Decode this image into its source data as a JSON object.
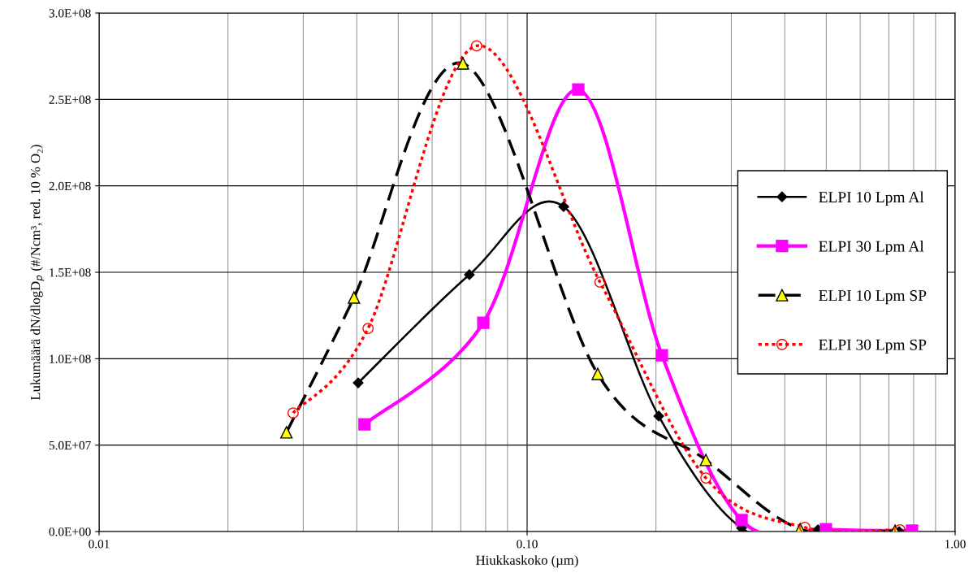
{
  "chart_data": {
    "type": "line",
    "xlabel": "Hiukkaskoko (µm)",
    "ylabel": "Lukumäärä dN/dlogD$_{p}$ (#/Ncm³, red. 10 % O₂)",
    "log": "x",
    "grid": true,
    "legend": "right",
    "xlim": [
      0.01,
      1.0
    ],
    "xticks": [
      {
        "value": 0.01,
        "label": "0.01"
      },
      {
        "value": 0.02,
        "label": null
      },
      {
        "value": 0.03,
        "label": null
      },
      {
        "value": 0.04,
        "label": null
      },
      {
        "value": 0.05,
        "label": null
      },
      {
        "value": 0.06,
        "label": null
      },
      {
        "value": 0.07,
        "label": null
      },
      {
        "value": 0.08,
        "label": null
      },
      {
        "value": 0.09,
        "label": null
      },
      {
        "value": 0.1,
        "label": "0.10"
      },
      {
        "value": 0.2,
        "label": null
      },
      {
        "value": 0.3,
        "label": null
      },
      {
        "value": 0.4,
        "label": null
      },
      {
        "value": 0.5,
        "label": null
      },
      {
        "value": 0.6,
        "label": null
      },
      {
        "value": 0.7,
        "label": null
      },
      {
        "value": 0.8,
        "label": null
      },
      {
        "value": 0.9,
        "label": null
      },
      {
        "value": 1.0,
        "label": "1.00"
      }
    ],
    "ylim": [
      0,
      300000000
    ],
    "yticks": [
      {
        "value": 0,
        "label": "0.0E+00"
      },
      {
        "value": 50000000,
        "label": "5.0E+07"
      },
      {
        "value": 100000000,
        "label": "1.0E+08"
      },
      {
        "value": 150000000,
        "label": "1.5E+08"
      },
      {
        "value": 200000000,
        "label": "2.0E+08"
      },
      {
        "value": 250000000,
        "label": "2.5E+08"
      },
      {
        "value": 300000000,
        "label": "3.0E+08"
      }
    ],
    "series": [
      {
        "name": "ELPI 10 Lpm Al",
        "color": "#000000",
        "marker": "diamond",
        "line_style": "solid",
        "x": [
          0.0403,
          0.0733,
          0.1217,
          0.203,
          0.317,
          0.478,
          0.74
        ],
        "values": [
          86000000,
          148600000,
          188000000,
          66800000,
          2000000,
          1000000,
          0
        ]
      },
      {
        "name": "ELPI 30 Lpm Al",
        "color": "#ff00ff",
        "marker": "square",
        "line_style": "solid",
        "x": [
          0.0417,
          0.079,
          0.1317,
          0.2065,
          0.317,
          0.499,
          0.793
        ],
        "values": [
          62000000,
          120800000,
          255700000,
          102000000,
          6600000,
          1400000,
          500000
        ]
      },
      {
        "name": "ELPI 10 Lpm SP",
        "color": "#000000",
        "marker": "triangle",
        "line_style": "dashed",
        "x": [
          0.0274,
          0.0394,
          0.0708,
          0.1462,
          0.2616,
          0.4345,
          0.724
        ],
        "values": [
          57400000,
          135400000,
          270800000,
          91200000,
          41400000,
          1400000,
          500000
        ]
      },
      {
        "name": "ELPI 30 Lpm SP",
        "color": "#ff0000",
        "marker": "circle",
        "line_style": "dotted",
        "x": [
          0.0284,
          0.0425,
          0.0762,
          0.148,
          0.2616,
          0.4457,
          0.743
        ],
        "values": [
          68600000,
          117500000,
          281000000,
          144300000,
          31000000,
          2400000,
          1000000
        ]
      }
    ]
  }
}
